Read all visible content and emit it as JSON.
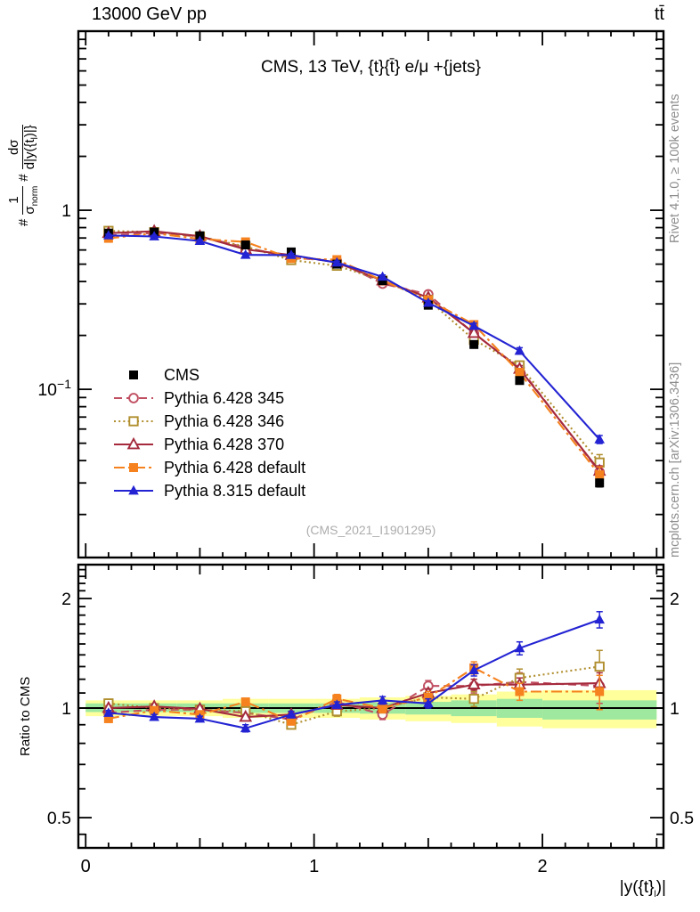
{
  "header": {
    "left": "13000 GeV pp",
    "right": "tt̄"
  },
  "panel_title": "CMS, 13 TeV, {t}{t̄} e/μ +{jets}",
  "watermark": "(CMS_2021_I1901295)",
  "side_notes": {
    "rivet": "Rivet 4.1.0, ≥ 100k events",
    "mcplots": "mcplots.cern.ch [arXiv:1306.3436]"
  },
  "ratio_ylabel": "Ratio to CMS",
  "ylabel": {
    "hash1": "#",
    "num1": "1",
    "den1": "σ",
    "den1_sub": "norm",
    "hash2": "#",
    "num2": "dσ",
    "den2": "d|y({t",
    "den2_sub": "l",
    "den2_post": ")|}"
  },
  "xlabel": {
    "pre": "|y({t}",
    "sub": "l",
    "post": ")|"
  },
  "chart_data": {
    "type": "line",
    "x": [
      0.1,
      0.3,
      0.5,
      0.7,
      0.9,
      1.1,
      1.3,
      1.5,
      1.7,
      1.9,
      2.25
    ],
    "bin_edges": [
      0,
      0.2,
      0.4,
      0.6,
      0.8,
      1.0,
      1.2,
      1.4,
      1.6,
      1.8,
      2.0,
      2.5
    ],
    "axes": {
      "x": {
        "range": [
          -0.032,
          2.53
        ],
        "major": [
          0,
          1,
          2
        ],
        "labels": [
          "0",
          "1",
          "2"
        ],
        "medium": [
          0.5,
          1.5,
          2.5
        ],
        "minor_step": 0.1
      },
      "y_main": {
        "scale": "log",
        "range": [
          0.0115,
          10
        ],
        "labels": [
          {
            "v": 1,
            "text": "1"
          },
          {
            "v": 0.1,
            "text": "10",
            "sup": "−1"
          }
        ]
      },
      "y_ratio": {
        "scale": "log",
        "range": [
          0.413,
          2.477
        ],
        "labels": [
          {
            "v": 2,
            "text": "2"
          },
          {
            "v": 1,
            "text": "1"
          },
          {
            "v": 0.5,
            "text": "0.5"
          }
        ],
        "minor": [
          0.45,
          0.6,
          0.7,
          0.8,
          0.9,
          1.1,
          1.2,
          1.3,
          1.4,
          1.5,
          1.6,
          1.7,
          1.8,
          1.9,
          2.1,
          2.2,
          2.3,
          2.4
        ]
      }
    },
    "series": [
      {
        "name": "CMS",
        "color": "#000000",
        "line": "none",
        "marker": "sq-f",
        "values": [
          0.745,
          0.755,
          0.72,
          0.64,
          0.585,
          0.5,
          0.405,
          0.295,
          0.178,
          0.112,
          0.03
        ],
        "err": [
          0.012,
          0.012,
          0.012,
          0.011,
          0.01,
          0.009,
          0.008,
          0.006,
          0.005,
          0.004,
          0.0015
        ]
      },
      {
        "name": "Pythia 6.428 345",
        "color": "#c04f62",
        "line": "dashed",
        "marker": "ci-o",
        "values": [
          0.723,
          0.747,
          0.713,
          0.621,
          0.544,
          0.52,
          0.389,
          0.339,
          0.205,
          0.132,
          0.0345
        ],
        "ratio": [
          0.97,
          0.99,
          0.99,
          0.97,
          0.93,
          1.04,
          0.96,
          1.15,
          1.15,
          1.18,
          1.15
        ],
        "ratio_err": [
          0.02,
          0.02,
          0.02,
          0.02,
          0.02,
          0.03,
          0.03,
          0.04,
          0.05,
          0.07,
          0.12
        ]
      },
      {
        "name": "Pythia 6.428 346",
        "color": "#b08f2f",
        "line": "dotted",
        "marker": "sq-o",
        "values": [
          0.767,
          0.755,
          0.713,
          0.627,
          0.527,
          0.49,
          0.405,
          0.316,
          0.189,
          0.136,
          0.039
        ],
        "ratio": [
          1.03,
          1.0,
          0.99,
          0.98,
          0.9,
          0.98,
          1.0,
          1.07,
          1.06,
          1.21,
          1.3
        ],
        "ratio_err": [
          0.02,
          0.02,
          0.02,
          0.02,
          0.02,
          0.03,
          0.03,
          0.04,
          0.05,
          0.07,
          0.14
        ]
      },
      {
        "name": "Pythia 6.428 370",
        "color": "#a42a3c",
        "line": "solid",
        "marker": "tr-o",
        "values": [
          0.745,
          0.763,
          0.716,
          0.605,
          0.562,
          0.51,
          0.405,
          0.325,
          0.206,
          0.13,
          0.035
        ],
        "ratio": [
          1.0,
          1.01,
          0.995,
          0.945,
          0.96,
          1.02,
          1.0,
          1.1,
          1.16,
          1.16,
          1.17
        ],
        "ratio_err": [
          0.015,
          0.015,
          0.015,
          0.015,
          0.015,
          0.02,
          0.02,
          0.03,
          0.04,
          0.05,
          0.08
        ]
      },
      {
        "name": "Pythia 6.428 default",
        "color": "#f5821e",
        "line": "dashdot",
        "marker": "sq-f",
        "values": [
          0.697,
          0.744,
          0.691,
          0.666,
          0.538,
          0.53,
          0.405,
          0.316,
          0.23,
          0.124,
          0.0333
        ],
        "ratio": [
          0.935,
          0.985,
          0.96,
          1.04,
          0.92,
          1.06,
          1.0,
          1.07,
          1.29,
          1.11,
          1.11
        ],
        "ratio_err": [
          0.02,
          0.02,
          0.02,
          0.02,
          0.02,
          0.03,
          0.03,
          0.04,
          0.05,
          0.06,
          0.12
        ]
      },
      {
        "name": "Pythia 8.315 default",
        "color": "#2323d3",
        "line": "solid",
        "marker": "tr-f",
        "values": [
          0.723,
          0.714,
          0.673,
          0.563,
          0.562,
          0.51,
          0.425,
          0.304,
          0.226,
          0.164,
          0.0525
        ],
        "ratio": [
          0.97,
          0.945,
          0.935,
          0.88,
          0.96,
          1.02,
          1.05,
          1.03,
          1.27,
          1.46,
          1.75
        ],
        "ratio_err": [
          0.015,
          0.015,
          0.015,
          0.02,
          0.02,
          0.02,
          0.025,
          0.03,
          0.045,
          0.06,
          0.09
        ]
      }
    ],
    "bands": {
      "yellow": "#ffff9c",
      "green": "#9fe89f",
      "per_bin": [
        {
          "ylo": 0.95,
          "yhi": 1.05,
          "glo": 0.975,
          "ghi": 1.03
        },
        {
          "ylo": 0.95,
          "yhi": 1.05,
          "glo": 0.975,
          "ghi": 1.03
        },
        {
          "ylo": 0.95,
          "yhi": 1.05,
          "glo": 0.975,
          "ghi": 1.03
        },
        {
          "ylo": 0.94,
          "yhi": 1.06,
          "glo": 0.97,
          "ghi": 1.03
        },
        {
          "ylo": 0.94,
          "yhi": 1.06,
          "glo": 0.97,
          "ghi": 1.03
        },
        {
          "ylo": 0.94,
          "yhi": 1.06,
          "glo": 0.97,
          "ghi": 1.03
        },
        {
          "ylo": 0.93,
          "yhi": 1.07,
          "glo": 0.965,
          "ghi": 1.035
        },
        {
          "ylo": 0.92,
          "yhi": 1.08,
          "glo": 0.96,
          "ghi": 1.04
        },
        {
          "ylo": 0.91,
          "yhi": 1.09,
          "glo": 0.95,
          "ghi": 1.05
        },
        {
          "ylo": 0.89,
          "yhi": 1.11,
          "glo": 0.94,
          "ghi": 1.06
        },
        {
          "ylo": 0.88,
          "yhi": 1.12,
          "glo": 0.93,
          "ghi": 1.05
        }
      ]
    }
  }
}
